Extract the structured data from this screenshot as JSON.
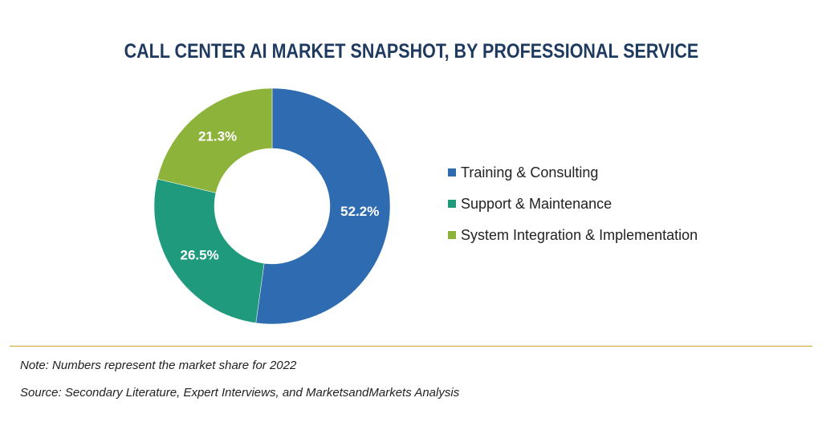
{
  "chart_data": {
    "type": "pie",
    "title": "CALL CENTER AI MARKET SNAPSHOT, BY PROFESSIONAL SERVICE",
    "donut": true,
    "legend_position": "right",
    "slices": [
      {
        "label": "Training & Consulting",
        "value": 52.2,
        "value_label": "52.2%",
        "color": "#2e6bb0"
      },
      {
        "label": "Support & Maintenance",
        "value": 26.5,
        "value_label": "26.5%",
        "color": "#1f9a7c"
      },
      {
        "label": "System Integration & Implementation",
        "value": 21.3,
        "value_label": "21.3%",
        "color": "#8db33a"
      }
    ]
  },
  "footer": {
    "note": "Note: Numbers represent the market share for 2022",
    "source": "Source: Secondary Literature, Expert Interviews, and MarketsandMarkets Analysis"
  },
  "colors": {
    "title": "#1f3a5f",
    "divider": "#c9a227"
  }
}
